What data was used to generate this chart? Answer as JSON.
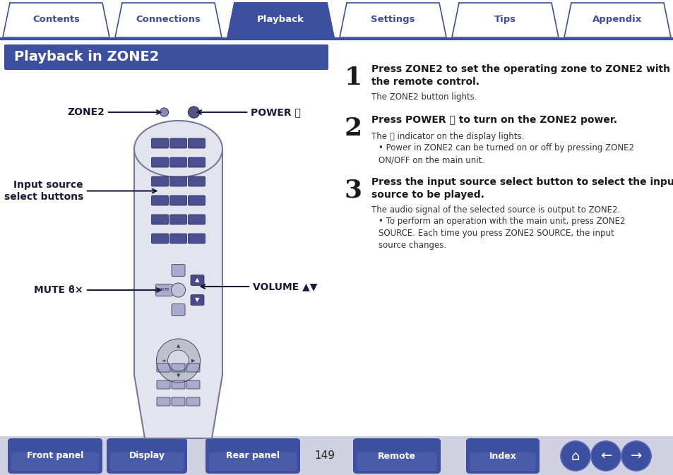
{
  "title": "Playback in ZONE2",
  "title_bg": "#3d4fa0",
  "title_fg": "#ffffff",
  "tab_labels": [
    "Contents",
    "Connections",
    "Playback",
    "Settings",
    "Tips",
    "Appendix"
  ],
  "active_tab": 2,
  "tab_bg_inactive": "#ffffff",
  "tab_bg_active": "#3d4fa0",
  "tab_fg_inactive": "#3d4fa0",
  "tab_fg_active": "#ffffff",
  "tab_border": "#3d4fa0",
  "bottom_buttons": [
    "Front panel",
    "Display",
    "Rear panel",
    "Remote",
    "Index"
  ],
  "page_number": "149",
  "btn_color": "#3d4fa0",
  "btn_fg": "#ffffff",
  "body_bg": "#ffffff",
  "label_zone2": "ZONE2",
  "label_power": "POWER ⏻",
  "label_input": "Input source\nselect buttons",
  "label_mute": "MUTE ϐ×",
  "label_volume": "VOLUME ▲▼",
  "steps": [
    {
      "num": "1",
      "heading": "Press ZONE2 to set the operating zone to ZONE2 with\nthe remote control.",
      "body": [
        "The ZONE2 button lights."
      ],
      "bullets": []
    },
    {
      "num": "2",
      "heading": "Press POWER ⏻ to turn on the ZONE2 power.",
      "body": [
        "The ㎣ indicator on the display lights."
      ],
      "bullets": [
        "Power in ZONE2 can be turned on or off by pressing ZONE2\nON/OFF on the main unit."
      ]
    },
    {
      "num": "3",
      "heading": "Press the input source select button to select the input\nsource to be played.",
      "body": [
        "The audio signal of the selected source is output to ZONE2."
      ],
      "bullets": [
        "To perform an operation with the main unit, press ZONE2\nSOURCE. Each time you press ZONE2 SOURCE, the input\nsource changes."
      ]
    }
  ]
}
